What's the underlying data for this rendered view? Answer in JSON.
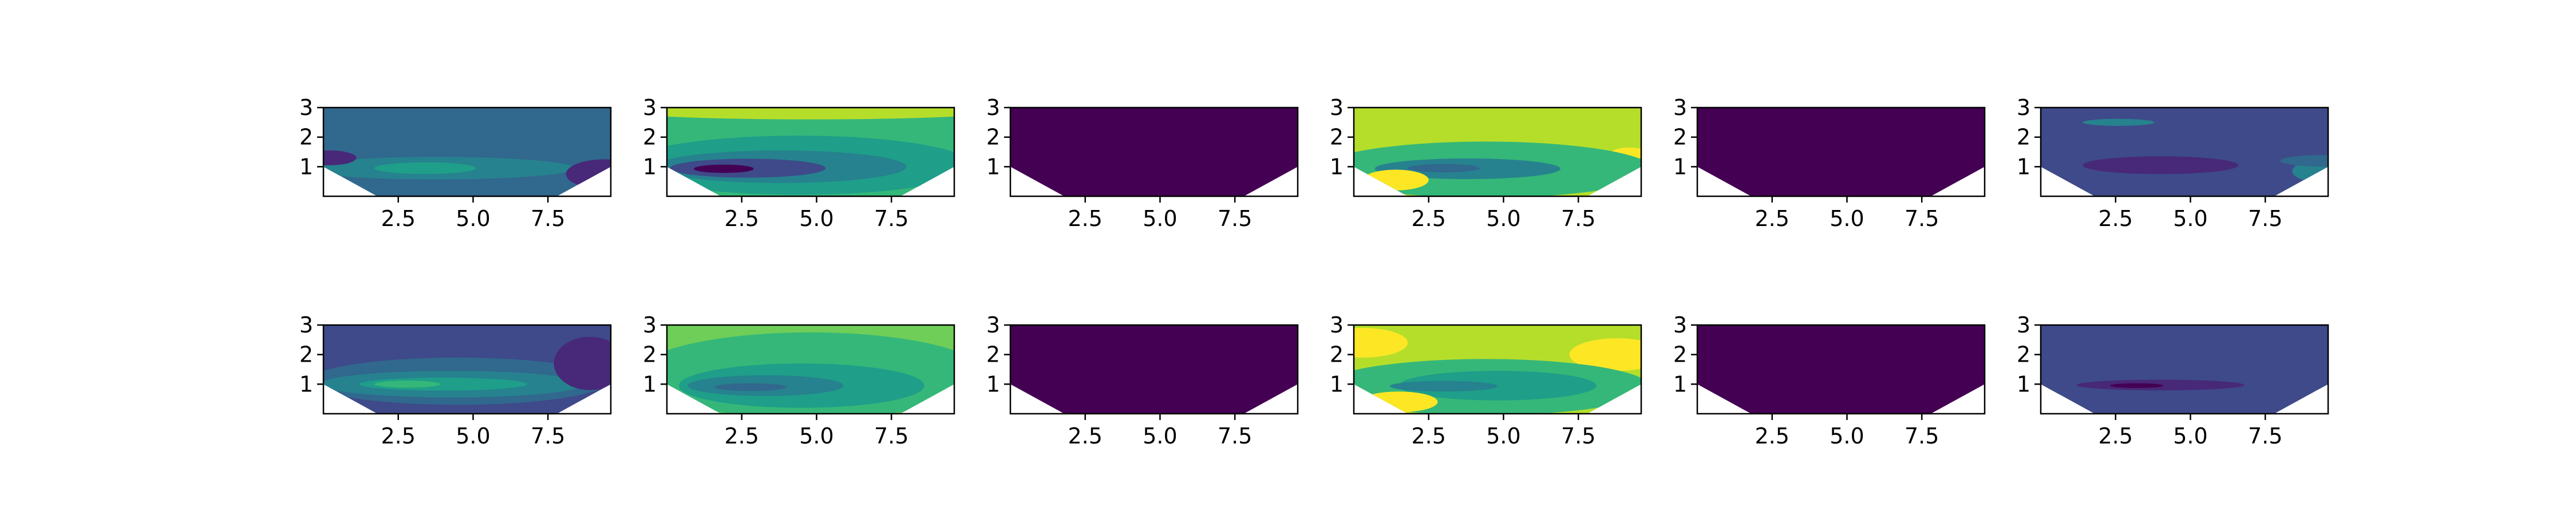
{
  "chart_data": {
    "type": "contour",
    "colormap": "viridis",
    "grid": false,
    "legend": "none",
    "layout": {
      "rows": 2,
      "cols": 6
    },
    "xlim": [
      0,
      9.6
    ],
    "ylim": [
      0,
      3
    ],
    "xticks": [
      2.5,
      5.0,
      7.5
    ],
    "yticks": [
      1,
      2,
      3
    ],
    "xtick_labels": [
      "2.5",
      "5.0",
      "7.5"
    ],
    "ytick_labels": [
      "1",
      "2",
      "3"
    ],
    "mask_boundary": {
      "x": [
        0,
        1.8,
        7.8,
        9.6
      ],
      "y": [
        1,
        0,
        0,
        1
      ]
    },
    "panels": [
      {
        "id": "r1c1",
        "base": 0.28,
        "bands": [
          {
            "xc": 3.8,
            "yc": 0.95,
            "rx": 4.6,
            "ry": 0.38,
            "level": 0.46
          },
          {
            "xc": 3.4,
            "yc": 0.95,
            "rx": 1.7,
            "ry": 0.2,
            "level": 0.56
          },
          {
            "xc": 9.4,
            "yc": 0.75,
            "rx": 1.3,
            "ry": 0.5,
            "level": 0.08
          },
          {
            "xc": 0.2,
            "yc": 1.3,
            "rx": 0.9,
            "ry": 0.25,
            "level": 0.14
          }
        ]
      },
      {
        "id": "r1c2",
        "base": 0.72,
        "bands": [
          {
            "xc": 4.8,
            "yc": 2.85,
            "rx": 6.0,
            "ry": 0.25,
            "level": 0.9
          },
          {
            "xc": 4.4,
            "yc": 1.05,
            "rx": 5.8,
            "ry": 1.0,
            "level": 0.56
          },
          {
            "xc": 3.8,
            "yc": 1.0,
            "rx": 4.2,
            "ry": 0.55,
            "level": 0.4
          },
          {
            "xc": 2.7,
            "yc": 0.95,
            "rx": 2.6,
            "ry": 0.32,
            "level": 0.2
          },
          {
            "xc": 1.9,
            "yc": 0.93,
            "rx": 1.0,
            "ry": 0.14,
            "level": 0.02
          }
        ]
      },
      {
        "id": "r1c3",
        "base": 0.0,
        "bands": []
      },
      {
        "id": "r1c4",
        "base": 0.86,
        "bands": [
          {
            "xc": 9.2,
            "yc": 1.45,
            "rx": 0.6,
            "ry": 0.2,
            "level": 0.97
          },
          {
            "xc": 4.4,
            "yc": 0.9,
            "rx": 5.6,
            "ry": 0.95,
            "level": 0.66
          },
          {
            "xc": 3.8,
            "yc": 0.93,
            "rx": 3.1,
            "ry": 0.35,
            "level": 0.44
          },
          {
            "xc": 3.0,
            "yc": 0.95,
            "rx": 1.2,
            "ry": 0.14,
            "level": 0.3
          },
          {
            "xc": 1.4,
            "yc": 0.55,
            "rx": 1.1,
            "ry": 0.35,
            "level": 0.95
          }
        ]
      },
      {
        "id": "r1c5",
        "base": 0.0,
        "bands": []
      },
      {
        "id": "r1c6",
        "base": 0.24,
        "bands": [
          {
            "xc": 2.6,
            "yc": 2.5,
            "rx": 1.2,
            "ry": 0.12,
            "level": 0.4
          },
          {
            "xc": 5.0,
            "yc": 1.4,
            "rx": 5.2,
            "ry": 1.0,
            "level": 0.18
          },
          {
            "xc": 4.0,
            "yc": 1.05,
            "rx": 2.6,
            "ry": 0.3,
            "level": 0.1
          },
          {
            "xc": 9.8,
            "yc": 0.85,
            "rx": 1.4,
            "ry": 0.45,
            "level": 0.46
          },
          {
            "xc": 9.5,
            "yc": 1.2,
            "rx": 1.5,
            "ry": 0.2,
            "level": 0.33
          }
        ]
      },
      {
        "id": "r2c1",
        "base": 0.24,
        "bands": [
          {
            "xc": 4.5,
            "yc": 1.1,
            "rx": 5.0,
            "ry": 0.8,
            "level": 0.33
          },
          {
            "xc": 4.3,
            "yc": 1.0,
            "rx": 4.4,
            "ry": 0.45,
            "level": 0.46
          },
          {
            "xc": 4.0,
            "yc": 1.0,
            "rx": 2.8,
            "ry": 0.22,
            "level": 0.58
          },
          {
            "xc": 2.8,
            "yc": 1.0,
            "rx": 1.1,
            "ry": 0.12,
            "level": 0.72
          },
          {
            "xc": 8.9,
            "yc": 1.7,
            "rx": 1.2,
            "ry": 0.9,
            "level": 0.08
          }
        ]
      },
      {
        "id": "r2c2",
        "base": 0.82,
        "bands": [
          {
            "xc": 4.8,
            "yc": 1.3,
            "rx": 5.9,
            "ry": 1.45,
            "level": 0.66
          },
          {
            "xc": 4.5,
            "yc": 0.95,
            "rx": 4.1,
            "ry": 0.75,
            "level": 0.56
          },
          {
            "xc": 3.3,
            "yc": 0.95,
            "rx": 2.6,
            "ry": 0.35,
            "level": 0.4
          },
          {
            "xc": 2.8,
            "yc": 0.9,
            "rx": 1.2,
            "ry": 0.13,
            "level": 0.33
          }
        ]
      },
      {
        "id": "r2c3",
        "base": 0.0,
        "bands": []
      },
      {
        "id": "r2c4",
        "base": 0.86,
        "bands": [
          {
            "xc": 8.8,
            "yc": 2.0,
            "rx": 1.6,
            "ry": 0.55,
            "level": 0.97
          },
          {
            "xc": 0.3,
            "yc": 2.4,
            "rx": 1.5,
            "ry": 0.5,
            "level": 0.95
          },
          {
            "xc": 4.4,
            "yc": 0.9,
            "rx": 5.5,
            "ry": 0.95,
            "level": 0.66
          },
          {
            "xc": 4.8,
            "yc": 0.95,
            "rx": 3.3,
            "ry": 0.5,
            "level": 0.56
          },
          {
            "xc": 3.0,
            "yc": 0.93,
            "rx": 1.8,
            "ry": 0.18,
            "level": 0.44
          },
          {
            "xc": 1.5,
            "yc": 0.4,
            "rx": 1.3,
            "ry": 0.35,
            "level": 0.97
          }
        ]
      },
      {
        "id": "r2c5",
        "base": 0.0,
        "bands": []
      },
      {
        "id": "r2c6",
        "base": 0.24,
        "bands": [
          {
            "xc": 4.2,
            "yc": 1.0,
            "rx": 5.5,
            "ry": 0.45,
            "level": 0.18
          },
          {
            "xc": 4.0,
            "yc": 0.97,
            "rx": 2.8,
            "ry": 0.18,
            "level": 0.1
          },
          {
            "xc": 3.2,
            "yc": 0.95,
            "rx": 0.9,
            "ry": 0.08,
            "level": 0.04
          }
        ]
      }
    ]
  }
}
